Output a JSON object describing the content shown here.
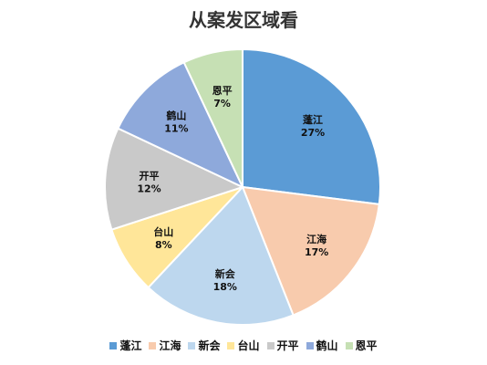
{
  "chart_data": {
    "type": "pie",
    "title": "从案发区域看",
    "categories": [
      "蓬江",
      "江海",
      "新会",
      "台山",
      "开平",
      "鹤山",
      "恩平"
    ],
    "values": [
      27,
      17,
      18,
      8,
      12,
      11,
      7
    ],
    "labels": [
      "27%",
      "17%",
      "18%",
      "8%",
      "12%",
      "11%",
      "7%"
    ],
    "colors": [
      "#5B9BD5",
      "#F8CBAD",
      "#BDD7EE",
      "#FFE699",
      "#C9C9C9",
      "#8EA9DB",
      "#C6E0B4"
    ],
    "legend_position": "bottom"
  }
}
